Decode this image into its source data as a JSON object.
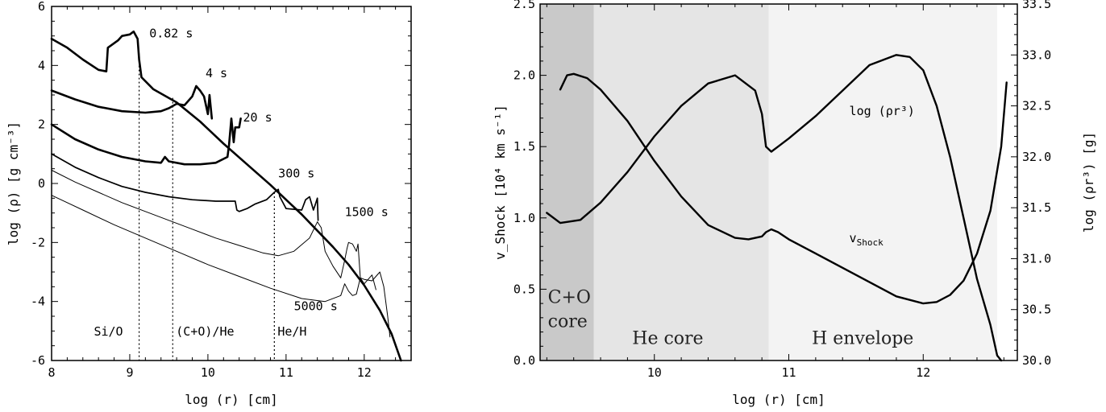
{
  "chart_data": [
    {
      "type": "line",
      "xlabel": "log (r) [cm]",
      "ylabel": "log (ρ) [g cm⁻³]",
      "xlim": [
        8,
        12.6
      ],
      "ylim": [
        -6,
        6
      ],
      "xticks": [
        "8",
        "9",
        "10",
        "11",
        "12"
      ],
      "yticks": [
        "-6",
        "-4",
        "-2",
        "0",
        "2",
        "4",
        "6"
      ],
      "series": [
        {
          "label": "0.82 s",
          "style": "thick",
          "x": [
            8.0,
            8.2,
            8.4,
            8.6,
            8.7,
            8.72,
            8.85,
            8.9,
            9.0,
            9.05,
            9.1,
            9.12,
            9.15,
            9.3,
            9.6,
            9.9,
            10.2,
            10.5,
            10.8,
            11.0,
            11.2,
            11.4,
            11.6,
            11.8,
            12.0,
            12.2,
            12.35,
            12.47
          ],
          "y": [
            4.9,
            4.6,
            4.2,
            3.85,
            3.8,
            4.6,
            4.85,
            5.0,
            5.05,
            5.15,
            4.9,
            4.2,
            3.6,
            3.2,
            2.75,
            2.1,
            1.35,
            0.65,
            -0.05,
            -0.55,
            -1.05,
            -1.6,
            -2.15,
            -2.75,
            -3.45,
            -4.3,
            -5.1,
            -6.0
          ]
        },
        {
          "label": "4 s",
          "style": "thick",
          "x": [
            8.0,
            8.3,
            8.6,
            8.9,
            9.2,
            9.4,
            9.5,
            9.6,
            9.7,
            9.75,
            9.8,
            9.85,
            9.9,
            9.95,
            10.0,
            10.02,
            10.05
          ],
          "y": [
            3.15,
            2.85,
            2.6,
            2.45,
            2.4,
            2.45,
            2.55,
            2.7,
            2.65,
            2.8,
            2.95,
            3.3,
            3.15,
            2.95,
            2.35,
            3.0,
            2.2
          ]
        },
        {
          "label": "20 s",
          "style": "thick",
          "x": [
            8.0,
            8.3,
            8.6,
            8.9,
            9.2,
            9.4,
            9.45,
            9.5,
            9.7,
            9.9,
            10.1,
            10.25,
            10.27,
            10.3,
            10.33,
            10.35,
            10.4,
            10.42
          ],
          "y": [
            2.0,
            1.5,
            1.15,
            0.9,
            0.75,
            0.7,
            0.9,
            0.75,
            0.65,
            0.65,
            0.7,
            0.9,
            1.3,
            2.2,
            1.4,
            1.9,
            1.9,
            2.2
          ]
        },
        {
          "label": "300 s",
          "style": "medium",
          "x": [
            8.0,
            8.3,
            8.6,
            8.9,
            9.2,
            9.5,
            9.8,
            10.1,
            10.35,
            10.37,
            10.4,
            10.5,
            10.6,
            10.75,
            10.85,
            10.9,
            10.92,
            11.0,
            11.2,
            11.25,
            11.3,
            11.35,
            11.37,
            11.4,
            11.41
          ],
          "y": [
            1.0,
            0.55,
            0.2,
            -0.1,
            -0.3,
            -0.45,
            -0.55,
            -0.6,
            -0.6,
            -0.9,
            -0.95,
            -0.85,
            -0.7,
            -0.55,
            -0.3,
            -0.2,
            -0.45,
            -0.85,
            -0.9,
            -0.55,
            -0.45,
            -0.9,
            -0.75,
            -0.5,
            -1.25
          ]
        },
        {
          "label": "1500 s",
          "style": "thin",
          "x": [
            8.0,
            8.3,
            8.6,
            8.9,
            9.2,
            9.5,
            9.8,
            10.1,
            10.4,
            10.7,
            10.9,
            11.1,
            11.3,
            11.4,
            11.45,
            11.5,
            11.6,
            11.7,
            11.75,
            11.78,
            11.8,
            11.85,
            11.9,
            11.92,
            11.95,
            12.0,
            12.1,
            12.15
          ],
          "y": [
            0.45,
            0.05,
            -0.3,
            -0.65,
            -0.95,
            -1.25,
            -1.55,
            -1.85,
            -2.1,
            -2.35,
            -2.45,
            -2.3,
            -1.85,
            -1.3,
            -1.5,
            -2.3,
            -2.8,
            -3.2,
            -2.6,
            -2.2,
            -2.0,
            -2.05,
            -2.3,
            -2.05,
            -3.2,
            -3.4,
            -3.1,
            -3.6
          ]
        },
        {
          "label": "5000 s",
          "style": "thin",
          "x": [
            8.0,
            8.4,
            8.8,
            9.2,
            9.6,
            10.0,
            10.4,
            10.8,
            11.2,
            11.5,
            11.7,
            11.75,
            11.8,
            11.85,
            11.9,
            11.95,
            12.0,
            12.1,
            12.2,
            12.25,
            12.3,
            12.33
          ],
          "y": [
            -0.4,
            -0.9,
            -1.4,
            -1.85,
            -2.3,
            -2.75,
            -3.15,
            -3.55,
            -3.9,
            -4.0,
            -3.8,
            -3.4,
            -3.65,
            -3.8,
            -3.75,
            -3.2,
            -3.25,
            -3.3,
            -3.0,
            -3.5,
            -4.5,
            -5.2
          ]
        }
      ],
      "annotations": {
        "time_labels": [
          "0.82 s",
          "4 s",
          "20 s",
          "300 s",
          "1500 s",
          "5000 s"
        ],
        "interfaces": [
          {
            "label": "Si/O",
            "x": 9.12
          },
          {
            "label": "(C+O)/He",
            "x": 9.55
          },
          {
            "label": "He/H",
            "x": 10.85
          }
        ]
      }
    },
    {
      "type": "line",
      "xlabel": "log (r) [cm]",
      "ylabel_left": "v_Shock [10⁴ km s⁻¹]",
      "ylabel_right": "log (ρr³) [g]",
      "xlim": [
        9.15,
        12.7
      ],
      "ylim_left": [
        0,
        2.5
      ],
      "ylim_right": [
        30.0,
        33.5
      ],
      "xticks": [
        "10",
        "11",
        "12"
      ],
      "yticks_left": [
        "0.0",
        "0.5",
        "1.0",
        "1.5",
        "2.0",
        "2.5"
      ],
      "yticks_right": [
        "30.0",
        "30.5",
        "31.0",
        "31.5",
        "32.0",
        "32.5",
        "33.0",
        "33.5"
      ],
      "regions": [
        {
          "label_lines": [
            "C+O",
            "core"
          ],
          "x0": 9.15,
          "x1": 9.55,
          "color": "#c9c9c9"
        },
        {
          "label_lines": [
            "He core"
          ],
          "x0": 9.55,
          "x1": 10.85,
          "color": "#e5e5e5"
        },
        {
          "label_lines": [
            "H envelope"
          ],
          "x0": 10.85,
          "x1": 12.55,
          "color": "#f3f3f3"
        }
      ],
      "series": [
        {
          "name": "v_Shock",
          "axis": "left",
          "x": [
            9.3,
            9.35,
            9.4,
            9.5,
            9.6,
            9.8,
            10.0,
            10.2,
            10.4,
            10.6,
            10.7,
            10.8,
            10.83,
            10.87,
            10.92,
            11.0,
            11.2,
            11.5,
            11.8,
            12.0,
            12.1,
            12.2,
            12.3,
            12.4,
            12.5,
            12.58,
            12.62
          ],
          "y": [
            1.9,
            2.0,
            2.01,
            1.98,
            1.9,
            1.68,
            1.4,
            1.15,
            0.95,
            0.86,
            0.85,
            0.87,
            0.9,
            0.92,
            0.9,
            0.85,
            0.75,
            0.6,
            0.45,
            0.4,
            0.41,
            0.46,
            0.56,
            0.75,
            1.05,
            1.5,
            1.95
          ]
        },
        {
          "name": "log (ρr³)",
          "axis": "right",
          "x": [
            9.2,
            9.3,
            9.45,
            9.6,
            9.8,
            10.0,
            10.2,
            10.4,
            10.6,
            10.75,
            10.8,
            10.83,
            10.87,
            10.92,
            11.0,
            11.2,
            11.4,
            11.6,
            11.8,
            11.9,
            12.0,
            12.1,
            12.2,
            12.3,
            12.4,
            12.5,
            12.55,
            12.58
          ],
          "y": [
            31.45,
            31.35,
            31.38,
            31.55,
            31.85,
            32.2,
            32.5,
            32.72,
            32.8,
            32.65,
            32.42,
            32.1,
            32.05,
            32.1,
            32.18,
            32.4,
            32.65,
            32.9,
            33.0,
            32.98,
            32.85,
            32.5,
            32.0,
            31.4,
            30.8,
            30.35,
            30.05,
            30.0
          ]
        }
      ],
      "annotations": {
        "rho_label": "log (ρr³)",
        "vshock_label": "v"
      }
    }
  ]
}
